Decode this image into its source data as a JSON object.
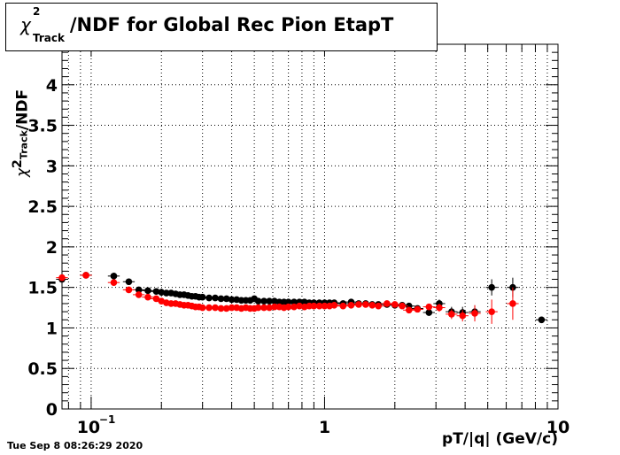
{
  "title": {
    "symbol": "χ",
    "superscript": "2",
    "subscript": "Track",
    "text": "/NDF for Global Rec Pion EtapT"
  },
  "timestamp": "Tue Sep  8 08:26:29 2020",
  "chart_data": {
    "type": "scatter",
    "title": "χ²_Track/NDF for Global Rec Pion EtapT",
    "xlabel": "pT/|q| (GeV/c)",
    "ylabel_symbol": "χ",
    "ylabel_sup": "2",
    "ylabel_sub": "Track",
    "ylabel_rest": "/NDF",
    "xscale": "log",
    "xlim": [
      0.075,
      10
    ],
    "ylim": [
      0,
      4.5
    ],
    "grid": true,
    "x_tick_labels": [
      {
        "value": 0.1,
        "label": "10",
        "exp": "−1"
      },
      {
        "value": 1,
        "label": "1"
      },
      {
        "value": 10,
        "label": "10"
      }
    ],
    "y_tick_labels": [
      "0",
      "0.5",
      "1",
      "1.5",
      "2",
      "2.5",
      "3",
      "3.5",
      "4"
    ],
    "y_tick_values": [
      0,
      0.5,
      1,
      1.5,
      2,
      2.5,
      3,
      3.5,
      4
    ],
    "series": [
      {
        "color": "#000000",
        "x": [
          0.075,
          0.095,
          0.125,
          0.145,
          0.16,
          0.175,
          0.19,
          0.2,
          0.21,
          0.22,
          0.23,
          0.24,
          0.25,
          0.26,
          0.27,
          0.28,
          0.29,
          0.3,
          0.32,
          0.34,
          0.36,
          0.38,
          0.4,
          0.42,
          0.44,
          0.46,
          0.48,
          0.5,
          0.52,
          0.55,
          0.58,
          0.61,
          0.64,
          0.67,
          0.7,
          0.74,
          0.78,
          0.82,
          0.86,
          0.9,
          0.95,
          1.0,
          1.05,
          1.1,
          1.2,
          1.3,
          1.4,
          1.5,
          1.6,
          1.7,
          1.85,
          2.0,
          2.15,
          2.3,
          2.5,
          2.8,
          3.1,
          3.5,
          3.9,
          4.4,
          5.2,
          6.4,
          8.5
        ],
        "y": [
          1.6,
          1.65,
          1.64,
          1.57,
          1.47,
          1.46,
          1.45,
          1.44,
          1.43,
          1.43,
          1.42,
          1.41,
          1.41,
          1.4,
          1.39,
          1.39,
          1.38,
          1.38,
          1.37,
          1.37,
          1.36,
          1.36,
          1.35,
          1.35,
          1.34,
          1.34,
          1.34,
          1.36,
          1.33,
          1.33,
          1.33,
          1.33,
          1.32,
          1.32,
          1.32,
          1.32,
          1.32,
          1.32,
          1.31,
          1.31,
          1.31,
          1.31,
          1.31,
          1.31,
          1.3,
          1.32,
          1.3,
          1.3,
          1.29,
          1.29,
          1.29,
          1.28,
          1.28,
          1.27,
          1.24,
          1.19,
          1.3,
          1.2,
          1.19,
          1.2,
          1.5,
          1.5,
          1.1
        ],
        "yerr": [
          0.02,
          0.02,
          0.02,
          0.02,
          0.01,
          0.01,
          0.01,
          0.01,
          0.01,
          0.01,
          0.01,
          0.01,
          0.01,
          0.01,
          0.01,
          0.01,
          0.01,
          0.01,
          0.01,
          0.01,
          0.01,
          0.01,
          0.01,
          0.01,
          0.01,
          0.01,
          0.01,
          0.01,
          0.01,
          0.01,
          0.01,
          0.01,
          0.01,
          0.01,
          0.01,
          0.01,
          0.01,
          0.01,
          0.01,
          0.01,
          0.01,
          0.01,
          0.01,
          0.01,
          0.01,
          0.01,
          0.01,
          0.01,
          0.01,
          0.01,
          0.01,
          0.01,
          0.02,
          0.02,
          0.03,
          0.04,
          0.05,
          0.06,
          0.07,
          0.08,
          0.1,
          0.12,
          0.02
        ]
      },
      {
        "color": "#ff0000",
        "x": [
          0.075,
          0.095,
          0.125,
          0.145,
          0.16,
          0.175,
          0.19,
          0.2,
          0.21,
          0.22,
          0.23,
          0.24,
          0.25,
          0.26,
          0.27,
          0.28,
          0.29,
          0.3,
          0.32,
          0.34,
          0.36,
          0.38,
          0.4,
          0.42,
          0.44,
          0.46,
          0.48,
          0.5,
          0.52,
          0.55,
          0.58,
          0.61,
          0.64,
          0.67,
          0.7,
          0.74,
          0.78,
          0.82,
          0.86,
          0.9,
          0.95,
          1.0,
          1.05,
          1.1,
          1.2,
          1.3,
          1.4,
          1.5,
          1.6,
          1.7,
          1.85,
          2.0,
          2.15,
          2.3,
          2.5,
          2.8,
          3.1,
          3.5,
          3.9,
          4.4,
          5.2,
          6.4
        ],
        "y": [
          1.62,
          1.65,
          1.56,
          1.47,
          1.41,
          1.38,
          1.36,
          1.33,
          1.31,
          1.3,
          1.3,
          1.29,
          1.28,
          1.28,
          1.27,
          1.26,
          1.26,
          1.25,
          1.25,
          1.25,
          1.24,
          1.24,
          1.25,
          1.25,
          1.24,
          1.25,
          1.24,
          1.24,
          1.25,
          1.25,
          1.25,
          1.26,
          1.26,
          1.25,
          1.26,
          1.26,
          1.27,
          1.26,
          1.27,
          1.27,
          1.27,
          1.27,
          1.27,
          1.28,
          1.27,
          1.28,
          1.29,
          1.29,
          1.28,
          1.27,
          1.3,
          1.29,
          1.27,
          1.22,
          1.23,
          1.26,
          1.25,
          1.17,
          1.15,
          1.18,
          1.2,
          1.3
        ],
        "yerr": [
          0.02,
          0.02,
          0.02,
          0.02,
          0.01,
          0.01,
          0.01,
          0.01,
          0.01,
          0.01,
          0.01,
          0.01,
          0.01,
          0.01,
          0.01,
          0.01,
          0.01,
          0.01,
          0.01,
          0.01,
          0.01,
          0.01,
          0.01,
          0.01,
          0.01,
          0.01,
          0.01,
          0.01,
          0.01,
          0.01,
          0.01,
          0.01,
          0.01,
          0.01,
          0.01,
          0.01,
          0.01,
          0.01,
          0.01,
          0.01,
          0.01,
          0.01,
          0.01,
          0.01,
          0.01,
          0.01,
          0.01,
          0.01,
          0.01,
          0.01,
          0.01,
          0.01,
          0.02,
          0.02,
          0.03,
          0.04,
          0.05,
          0.06,
          0.07,
          0.1,
          0.15,
          0.2
        ]
      }
    ]
  }
}
